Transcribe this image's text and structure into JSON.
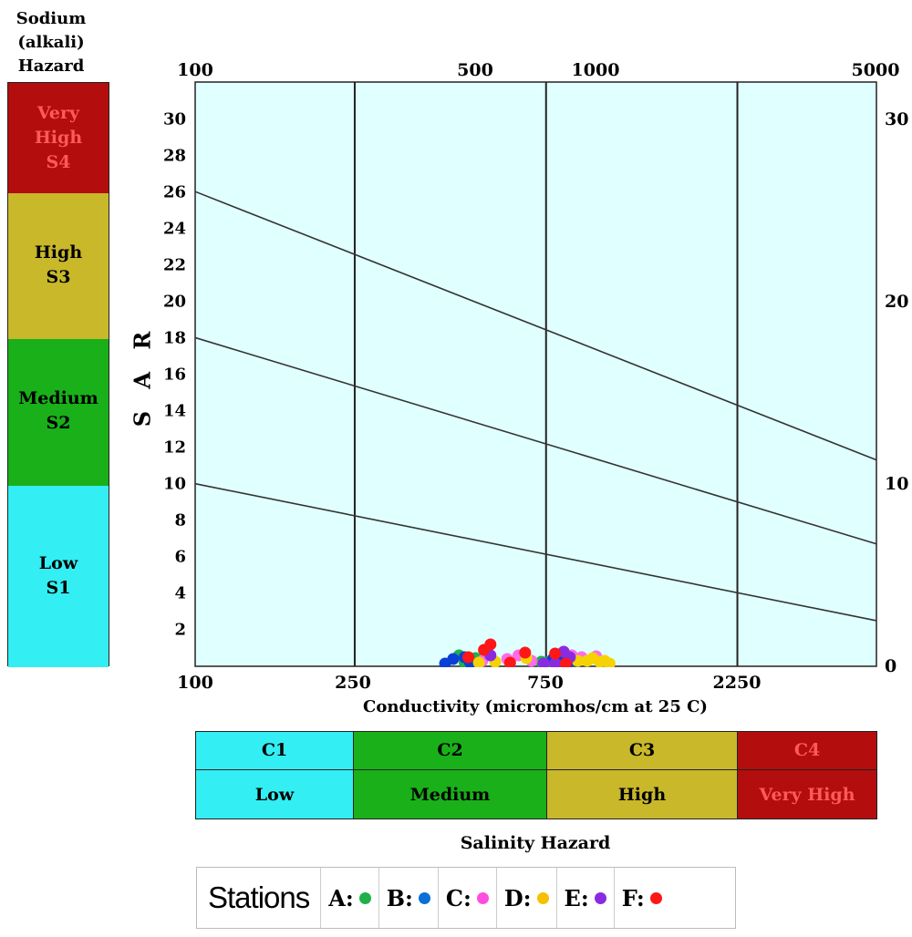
{
  "sodium_hazard": {
    "title_lines": [
      "Sodium",
      "(alkali)",
      "Hazard"
    ],
    "bands": [
      {
        "lines": [
          "Very",
          "High",
          "S4"
        ],
        "color": "#b30d0d",
        "text_color": "#ff5a5a"
      },
      {
        "lines": [
          "High",
          "S3"
        ],
        "color": "#c8b82a",
        "text_color": "#000000"
      },
      {
        "lines": [
          "Medium",
          "S2"
        ],
        "color": "#19b019",
        "text_color": "#000000"
      },
      {
        "lines": [
          "Low",
          "S1"
        ],
        "color": "#33eef2",
        "text_color": "#000000"
      }
    ]
  },
  "chart_data": {
    "type": "scatter",
    "xlabel": "Conductivity (micromhos/cm at 25  C)",
    "ylabel": "S A R",
    "xscale": "log",
    "xlim": [
      100,
      5000
    ],
    "ylim": [
      0,
      32
    ],
    "top_tick_labels": [
      "100",
      "500",
      "1000",
      "5000"
    ],
    "bottom_tick_labels": [
      "100",
      "250",
      "750",
      "2250"
    ],
    "y_tick_labels": [
      "2",
      "4",
      "6",
      "8",
      "10",
      "12",
      "14",
      "16",
      "18",
      "20",
      "22",
      "24",
      "26",
      "28",
      "30"
    ],
    "right_tick_labels": [
      "30",
      "20",
      "10",
      "0"
    ],
    "vertical_lines_x": [
      250,
      750,
      2250
    ],
    "boundary_lines": [
      {
        "from": [
          100,
          10
        ],
        "to": [
          5000,
          2.5
        ]
      },
      {
        "from": [
          100,
          18
        ],
        "to": [
          5000,
          6.7
        ]
      },
      {
        "from": [
          100,
          26
        ],
        "to": [
          5000,
          11.3
        ]
      }
    ],
    "background": "#e0ffff",
    "grid": false,
    "series": [
      {
        "name": "A",
        "color": "#1fb04a",
        "points": [
          [
            455,
            0.6
          ],
          [
            500,
            0.45
          ],
          [
            730,
            0.25
          ],
          [
            750,
            0.2
          ],
          [
            470,
            0.2
          ]
        ]
      },
      {
        "name": "B",
        "color": "#0a3fd6",
        "points": [
          [
            420,
            0.1
          ],
          [
            440,
            0.4
          ],
          [
            470,
            0.5
          ],
          [
            485,
            0.2
          ],
          [
            780,
            0.4
          ],
          [
            820,
            0.35
          ],
          [
            850,
            0.2
          ]
        ]
      },
      {
        "name": "C",
        "color": "#ff6be8",
        "points": [
          [
            520,
            0.3
          ],
          [
            600,
            0.4
          ],
          [
            640,
            0.6
          ],
          [
            690,
            0.3
          ],
          [
            870,
            0.6
          ],
          [
            920,
            0.5
          ],
          [
            1000,
            0.55
          ]
        ]
      },
      {
        "name": "D",
        "color": "#f5d200",
        "points": [
          [
            510,
            0.2
          ],
          [
            560,
            0.25
          ],
          [
            670,
            0.45
          ],
          [
            900,
            0.3
          ],
          [
            950,
            0.3
          ],
          [
            980,
            0.45
          ],
          [
            1020,
            0.25
          ],
          [
            1050,
            0.3
          ],
          [
            1080,
            0.15
          ]
        ]
      },
      {
        "name": "E",
        "color": "#8a2be2",
        "points": [
          [
            545,
            0.6
          ],
          [
            790,
            0.1
          ],
          [
            830,
            0.8
          ],
          [
            860,
            0.5
          ],
          [
            740,
            0.1
          ]
        ]
      },
      {
        "name": "F",
        "color": "#ff1616",
        "points": [
          [
            525,
            0.9
          ],
          [
            545,
            1.2
          ],
          [
            610,
            0.2
          ],
          [
            665,
            0.75
          ],
          [
            790,
            0.7
          ],
          [
            840,
            0.1
          ],
          [
            480,
            0.5
          ]
        ]
      }
    ]
  },
  "salinity_hazard": {
    "title": "Salinity Hazard",
    "classes": [
      {
        "code": "C1",
        "label": "Low",
        "color": "#33eef2",
        "text_color": "#000000"
      },
      {
        "code": "C2",
        "label": "Medium",
        "color": "#19b019",
        "text_color": "#000000"
      },
      {
        "code": "C3",
        "label": "High",
        "color": "#c8b82a",
        "text_color": "#000000"
      },
      {
        "code": "C4",
        "label": "Very High",
        "color": "#b30d0d",
        "text_color": "#ff5a5a"
      }
    ]
  },
  "legend": {
    "title": "Stations",
    "items": [
      {
        "key": "A:",
        "color": "#1fb04a"
      },
      {
        "key": "B:",
        "color": "#0a6fd6"
      },
      {
        "key": "C:",
        "color": "#ff4de0"
      },
      {
        "key": "D:",
        "color": "#f5c000"
      },
      {
        "key": "E:",
        "color": "#8a2be2"
      },
      {
        "key": "F:",
        "color": "#ff1616"
      }
    ]
  }
}
